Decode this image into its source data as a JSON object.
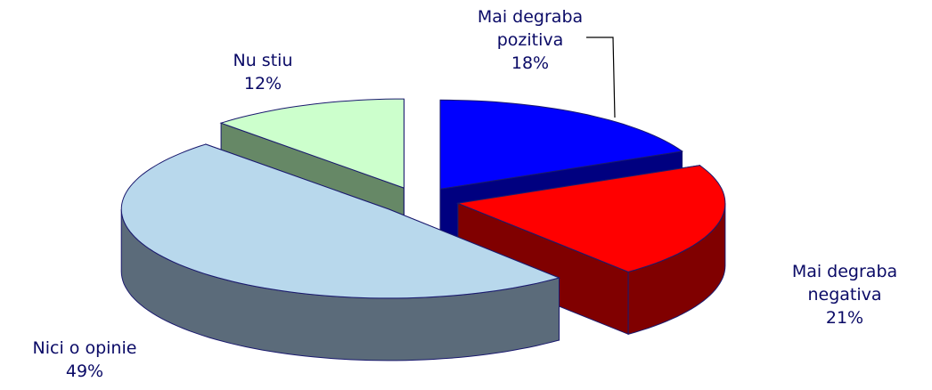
{
  "chart_data": {
    "type": "pie3d",
    "categories": [
      "Mai degraba pozitiva",
      "Mai degraba negativa",
      "Nici o opinie",
      "Nu stiu"
    ],
    "values": [
      18,
      21,
      49,
      12
    ],
    "value_labels": [
      "18%",
      "21%",
      "49%",
      "12%"
    ],
    "colors": [
      "#0000ff",
      "#ff0000",
      "#b8d8ec",
      "#ccffcc"
    ],
    "side_colors": [
      "#000080",
      "#800000",
      "#5b6b7a",
      "#668866"
    ]
  }
}
